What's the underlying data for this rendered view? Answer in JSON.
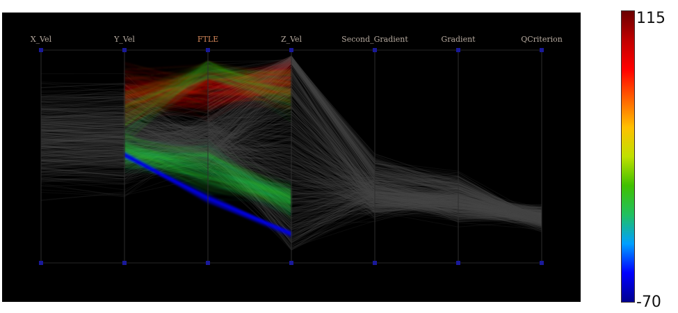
{
  "chart_data": {
    "type": "parallel-coordinates",
    "axes": [
      "X_Vel",
      "Y_Vel",
      "FTLE",
      "Z_Vel",
      "Second_Gradient",
      "Gradient",
      "QCriterion"
    ],
    "selected_axis": "FTLE",
    "line_color_default": "#4a4a4a",
    "colormap": [
      "#00008f",
      "#0000ff",
      "#00a0ff",
      "#20c060",
      "#40c000",
      "#c0e000",
      "#ffc000",
      "#ff6000",
      "#ff0000",
      "#c00000",
      "#6a0000"
    ],
    "colorbar": {
      "max_label": "115",
      "min_label": "-70"
    },
    "background": "#000000",
    "axis_marker_color": "#1a1a9a"
  }
}
